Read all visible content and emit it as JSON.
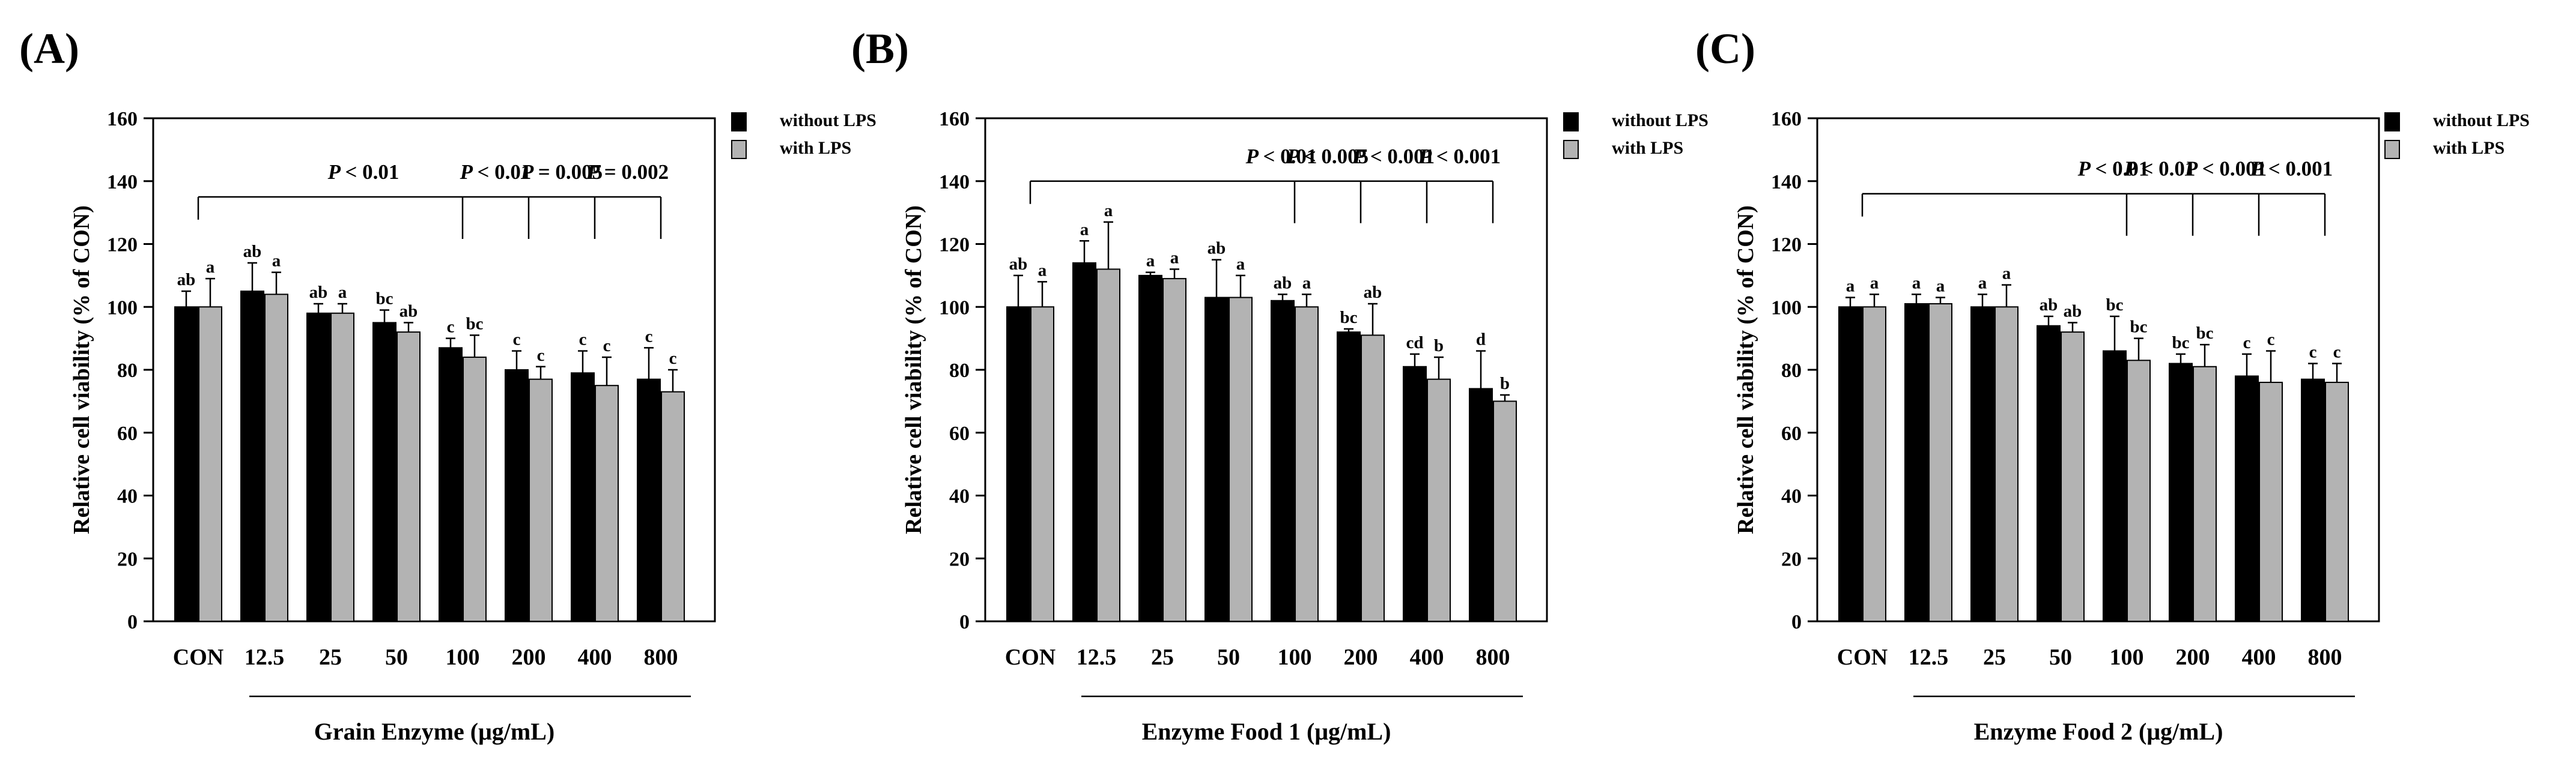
{
  "chart_data": [
    {
      "type": "bar",
      "panel_label": "(A)",
      "xlabel": "Grain Enzyme (μg/mL)",
      "ylabel": "Relative cell viability (% of CON)",
      "ylim": [
        0,
        160
      ],
      "yticks": [
        "0",
        "20",
        "40",
        "60",
        "80",
        "100",
        "120",
        "140",
        "160"
      ],
      "categories": [
        "CON",
        "12.5",
        "25",
        "50",
        "100",
        "200",
        "400",
        "800"
      ],
      "series": [
        {
          "name": "without LPS",
          "color": "#000000",
          "values": [
            100,
            105,
            98,
            95,
            87,
            80,
            79,
            77
          ],
          "errors": [
            5,
            9,
            3,
            4,
            3,
            6,
            7,
            10
          ],
          "letters": [
            "ab",
            "ab",
            "ab",
            "bc",
            "c",
            "c",
            "c",
            "c"
          ]
        },
        {
          "name": "with LPS",
          "color": "#b3b3b3",
          "values": [
            100,
            104,
            98,
            92,
            84,
            77,
            75,
            73
          ],
          "errors": [
            9,
            7,
            3,
            3,
            7,
            4,
            9,
            7
          ],
          "letters": [
            "a",
            "a",
            "a",
            "ab",
            "bc",
            "c",
            "c",
            "c"
          ]
        }
      ],
      "comparisons": [
        {
          "label": "P < 0.01",
          "text_start": 1,
          "text_end": 4,
          "from": 0,
          "to": 4
        },
        {
          "label": "P < 0.01",
          "text_start": 4,
          "text_end": 5,
          "from": 0,
          "to": 5
        },
        {
          "label": "P = 0.005",
          "text_start": 5,
          "text_end": 6,
          "from": 0,
          "to": 6
        },
        {
          "label": "P = 0.002",
          "text_start": 6,
          "text_end": 7,
          "from": 0,
          "to": 7
        }
      ]
    },
    {
      "type": "bar",
      "panel_label": "(B)",
      "xlabel": "Enzyme Food 1 (μg/mL)",
      "ylabel": "Relative cell viability (% of CON)",
      "ylim": [
        0,
        160
      ],
      "yticks": [
        "0",
        "20",
        "40",
        "60",
        "80",
        "100",
        "120",
        "140",
        "160"
      ],
      "categories": [
        "CON",
        "12.5",
        "25",
        "50",
        "100",
        "200",
        "400",
        "800"
      ],
      "series": [
        {
          "name": "without LPS",
          "color": "#000000",
          "values": [
            100,
            114,
            110,
            103,
            102,
            92,
            81,
            74
          ],
          "errors": [
            10,
            7,
            1,
            12,
            2,
            1,
            4,
            12
          ],
          "letters": [
            "ab",
            "a",
            "a",
            "ab",
            "ab",
            "bc",
            "cd",
            "d"
          ]
        },
        {
          "name": "with LPS",
          "color": "#b3b3b3",
          "values": [
            100,
            112,
            109,
            103,
            100,
            91,
            77,
            70
          ],
          "errors": [
            8,
            15,
            3,
            7,
            4,
            10,
            7,
            2
          ],
          "letters": [
            "a",
            "a",
            "a",
            "a",
            "a",
            "ab",
            "b",
            "b"
          ]
        }
      ],
      "comparisons": [
        {
          "label": "P < 0.01",
          "text_start": 3.6,
          "text_end": 4,
          "from": 0,
          "to": 4
        },
        {
          "label": "P < 0.005",
          "text_start": 4,
          "text_end": 5,
          "from": 0,
          "to": 5
        },
        {
          "label": "P < 0.001",
          "text_start": 5,
          "text_end": 6,
          "from": 0,
          "to": 6
        },
        {
          "label": "P < 0.001",
          "text_start": 6,
          "text_end": 7,
          "from": 0,
          "to": 7
        }
      ]
    },
    {
      "type": "bar",
      "panel_label": "(C)",
      "xlabel": "Enzyme Food 2 (μg/mL)",
      "ylabel": "Relative cell viability (% of CON)",
      "ylim": [
        0,
        160
      ],
      "yticks": [
        "0",
        "20",
        "40",
        "60",
        "80",
        "100",
        "120",
        "140",
        "160"
      ],
      "categories": [
        "CON",
        "12.5",
        "25",
        "50",
        "100",
        "200",
        "400",
        "800"
      ],
      "series": [
        {
          "name": "without LPS",
          "color": "#000000",
          "values": [
            100,
            101,
            100,
            94,
            86,
            82,
            78,
            77
          ],
          "errors": [
            3,
            3,
            4,
            3,
            11,
            3,
            7,
            5
          ],
          "letters": [
            "a",
            "a",
            "a",
            "ab",
            "bc",
            "bc",
            "c",
            "c"
          ]
        },
        {
          "name": "with LPS",
          "color": "#b3b3b3",
          "values": [
            100,
            101,
            100,
            92,
            83,
            81,
            76,
            76
          ],
          "errors": [
            4,
            2,
            7,
            3,
            7,
            7,
            10,
            6
          ],
          "letters": [
            "a",
            "a",
            "a",
            "ab",
            "bc",
            "bc",
            "c",
            "c"
          ]
        }
      ],
      "comparisons": [
        {
          "label": "P < 0.01",
          "text_start": 3.6,
          "text_end": 4,
          "from": 0,
          "to": 4
        },
        {
          "label": "P < 0.01",
          "text_start": 4,
          "text_end": 5,
          "from": 0,
          "to": 5
        },
        {
          "label": "P < 0.001",
          "text_start": 5,
          "text_end": 6,
          "from": 0,
          "to": 6
        },
        {
          "label": "P < 0.001",
          "text_start": 6,
          "text_end": 7,
          "from": 0,
          "to": 7
        }
      ]
    }
  ]
}
